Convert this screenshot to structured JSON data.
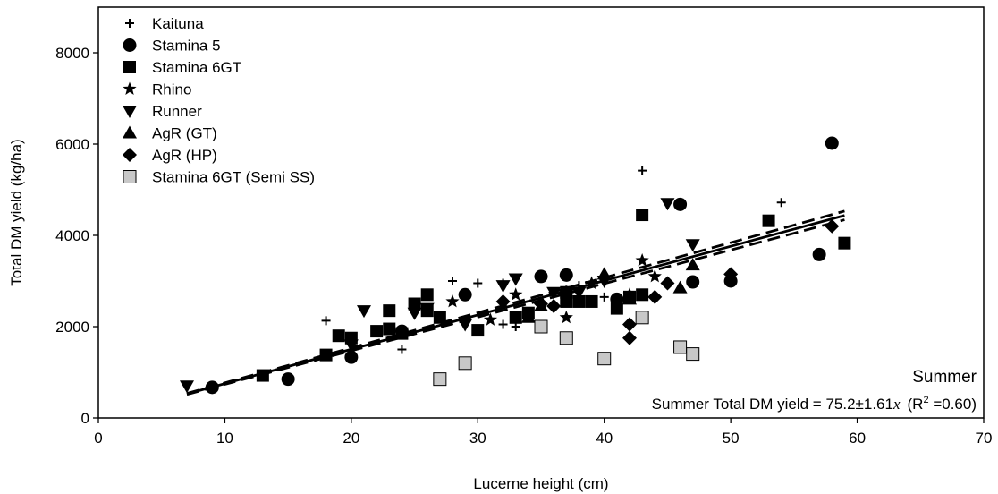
{
  "chart_data": {
    "type": "scatter",
    "xlabel": "Lucerne height (cm)",
    "ylabel": "Total DM yield (kg/ha)",
    "xlim": [
      0,
      70
    ],
    "ylim": [
      0,
      9000
    ],
    "xticks": [
      0,
      10,
      20,
      30,
      40,
      50,
      60,
      70
    ],
    "yticks": [
      0,
      2000,
      4000,
      6000,
      8000
    ],
    "grid": false,
    "legend_position": "top-left",
    "annotations": {
      "season": "Summer",
      "equation_prefix": "Summer Total DM yield = 75.2±1.61",
      "equation_var": "x",
      "r2_open": "(R",
      "r2_sup": "2",
      "r2_close": " =0.60)"
    },
    "series": [
      {
        "name": "Kaituna",
        "marker": "plus",
        "color": "#000000",
        "points": [
          [
            18,
            2130
          ],
          [
            24,
            1500
          ],
          [
            28,
            3000
          ],
          [
            30,
            2950
          ],
          [
            32,
            2050
          ],
          [
            32,
            2950
          ],
          [
            33,
            2000
          ],
          [
            37,
            2800
          ],
          [
            38,
            2900
          ],
          [
            40,
            2650
          ],
          [
            43,
            5420
          ],
          [
            54,
            4720
          ]
        ]
      },
      {
        "name": "Stamina 5",
        "marker": "circle",
        "color": "#000000",
        "points": [
          [
            9,
            670
          ],
          [
            15,
            850
          ],
          [
            20,
            1330
          ],
          [
            24,
            1900
          ],
          [
            29,
            2700
          ],
          [
            35,
            3100
          ],
          [
            37,
            3130
          ],
          [
            41,
            2600
          ],
          [
            46,
            4680
          ],
          [
            47,
            2980
          ],
          [
            50,
            3000
          ],
          [
            57,
            3580
          ],
          [
            58,
            6020
          ]
        ]
      },
      {
        "name": "Stamina 6GT",
        "marker": "square",
        "color": "#000000",
        "points": [
          [
            13,
            930
          ],
          [
            18,
            1380
          ],
          [
            19,
            1800
          ],
          [
            20,
            1750
          ],
          [
            22,
            1900
          ],
          [
            23,
            1950
          ],
          [
            23,
            2350
          ],
          [
            24,
            1850
          ],
          [
            25,
            2500
          ],
          [
            26,
            2350
          ],
          [
            26,
            2700
          ],
          [
            27,
            2200
          ],
          [
            30,
            1920
          ],
          [
            33,
            2200
          ],
          [
            34,
            2300
          ],
          [
            37,
            2550
          ],
          [
            37,
            2750
          ],
          [
            38,
            2550
          ],
          [
            39,
            2550
          ],
          [
            41,
            2400
          ],
          [
            42,
            2650
          ],
          [
            43,
            2700
          ],
          [
            43,
            4450
          ],
          [
            53,
            4320
          ],
          [
            59,
            3830
          ]
        ]
      },
      {
        "name": "Rhino",
        "marker": "star",
        "color": "#000000",
        "points": [
          [
            28,
            2550
          ],
          [
            31,
            2150
          ],
          [
            33,
            2700
          ],
          [
            37,
            2200
          ],
          [
            39,
            2950
          ],
          [
            42,
            2700
          ],
          [
            43,
            3450
          ],
          [
            44,
            3100
          ]
        ]
      },
      {
        "name": "Runner",
        "marker": "triangle-down",
        "color": "#000000",
        "points": [
          [
            7,
            700
          ],
          [
            20,
            1600
          ],
          [
            21,
            2350
          ],
          [
            25,
            2300
          ],
          [
            26,
            2400
          ],
          [
            29,
            2050
          ],
          [
            32,
            2900
          ],
          [
            33,
            3050
          ],
          [
            36,
            2750
          ],
          [
            38,
            2750
          ],
          [
            40,
            3000
          ],
          [
            45,
            4700
          ],
          [
            47,
            3800
          ]
        ]
      },
      {
        "name": "AgR (GT)",
        "marker": "triangle-up",
        "color": "#000000",
        "points": [
          [
            34,
            2200
          ],
          [
            35,
            2450
          ],
          [
            40,
            3150
          ],
          [
            42,
            2600
          ],
          [
            46,
            2850
          ],
          [
            47,
            3350
          ]
        ]
      },
      {
        "name": "AgR (HP)",
        "marker": "diamond",
        "color": "#000000",
        "points": [
          [
            32,
            2550
          ],
          [
            35,
            2500
          ],
          [
            36,
            2450
          ],
          [
            42,
            1750
          ],
          [
            42,
            2050
          ],
          [
            44,
            2650
          ],
          [
            45,
            2950
          ],
          [
            50,
            3150
          ],
          [
            58,
            4200
          ]
        ]
      },
      {
        "name": "Stamina 6GT (Semi SS)",
        "marker": "square",
        "color": "#c8c8c8",
        "points": [
          [
            27,
            850
          ],
          [
            29,
            1200
          ],
          [
            35,
            2000
          ],
          [
            37,
            1750
          ],
          [
            40,
            1300
          ],
          [
            43,
            2200
          ],
          [
            46,
            1550
          ],
          [
            47,
            1400
          ]
        ]
      }
    ],
    "fit": {
      "slope": 75.2,
      "x_range": [
        7,
        59
      ],
      "ci_lower_slope": 73.59,
      "ci_upper_slope": 76.81
    }
  }
}
